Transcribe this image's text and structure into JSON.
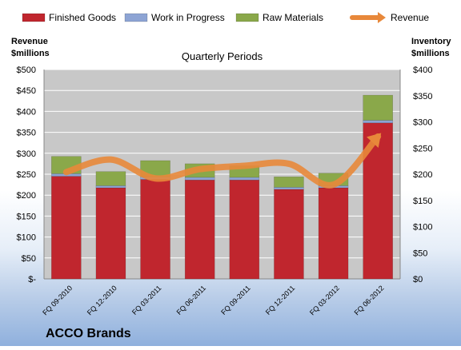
{
  "chart_data": {
    "type": "bar",
    "subtype": "stacked bar with line overlay",
    "company": "ACCO Brands",
    "subtitle": "Quarterly Periods",
    "left_axis_label": [
      "Revenue",
      "$millions"
    ],
    "right_axis_label": [
      "Inventory",
      "$millions"
    ],
    "categories": [
      "FQ 09-2010",
      "FQ 12-2010",
      "FQ 03-2011",
      "FQ 06-2011",
      "FQ 09-2011",
      "FQ 12-2011",
      "FQ 03-2012",
      "FQ 06-2012"
    ],
    "left_axis": {
      "min": 0,
      "max": 500,
      "step": 50,
      "tick_labels": [
        "$-",
        "$50",
        "$100",
        "$150",
        "$200",
        "$250",
        "$300",
        "$350",
        "$400",
        "$450",
        "$500"
      ]
    },
    "right_axis": {
      "min": 0,
      "max": 400,
      "step": 50,
      "tick_labels": [
        "$0",
        "$50",
        "$100",
        "$150",
        "$200",
        "$250",
        "$300",
        "$350",
        "$400"
      ]
    },
    "series": [
      {
        "name": "Finished Goods",
        "axis": "right",
        "color": "#c0262e",
        "values": [
          196,
          174,
          190,
          189,
          189,
          171,
          174,
          298
        ]
      },
      {
        "name": "Work in Progress",
        "axis": "right",
        "color": "#8da4d4",
        "values": [
          5,
          4,
          5,
          5,
          5,
          4,
          4,
          5
        ]
      },
      {
        "name": "Raw Materials",
        "axis": "right",
        "color": "#8aa84a",
        "values": [
          33,
          27,
          31,
          26,
          22,
          20,
          24,
          48
        ]
      },
      {
        "name": "Revenue",
        "axis": "left",
        "type": "line",
        "color": "#e8883a",
        "values": [
          255,
          285,
          240,
          262,
          270,
          275,
          225,
          340
        ]
      }
    ],
    "grid": true,
    "legend_position": "top"
  },
  "colors": {
    "plot_bg": "#c8c8c8",
    "grid": "#ffffff",
    "text": "#000000"
  }
}
